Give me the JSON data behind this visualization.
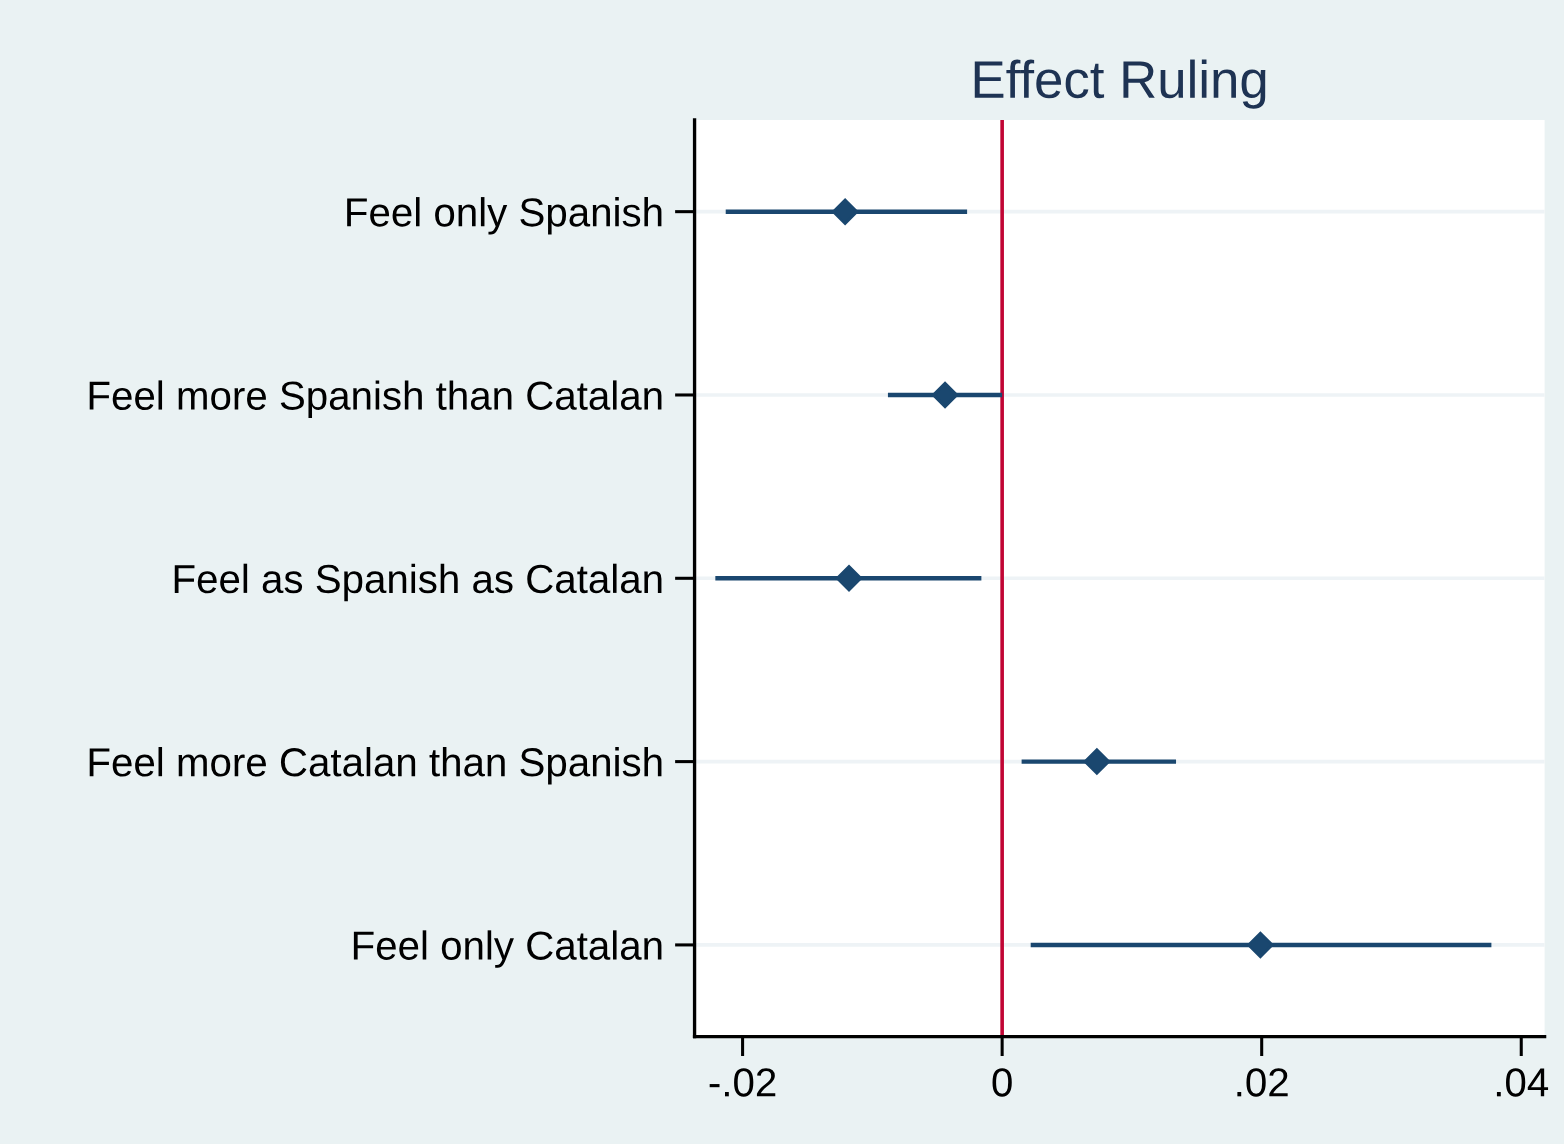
{
  "chart_data": {
    "type": "scatter",
    "title": "Effect Ruling",
    "orientation": "horizontal",
    "categories": [
      "Feel only Spanish",
      "Feel more Spanish than Catalan",
      "Feel as Spanish as Catalan",
      "Feel more Catalan than Spanish",
      "Feel only Catalan"
    ],
    "series": [
      {
        "color": "#1a476f",
        "values": [
          -0.0121,
          -0.0044,
          -0.0118,
          0.0073,
          0.0199
        ],
        "errors": [
          [
            -0.0213,
            -0.0027
          ],
          [
            -0.0088,
            0.0
          ],
          [
            -0.0221,
            -0.0016
          ],
          [
            0.0015,
            0.0134
          ],
          [
            0.0022,
            0.0377
          ]
        ]
      }
    ],
    "xlim": [
      -0.0237,
      0.0418
    ],
    "xticks": [
      {
        "value": -0.02,
        "label": "-.02"
      },
      {
        "value": 0,
        "label": "0"
      },
      {
        "value": 0.02,
        "label": ".02"
      },
      {
        "value": 0.04,
        "label": ".04"
      }
    ],
    "ref_lines": [
      {
        "axis": "x",
        "value": 0,
        "color": "#c10534"
      }
    ],
    "grid": "y",
    "marker": "diamond"
  }
}
